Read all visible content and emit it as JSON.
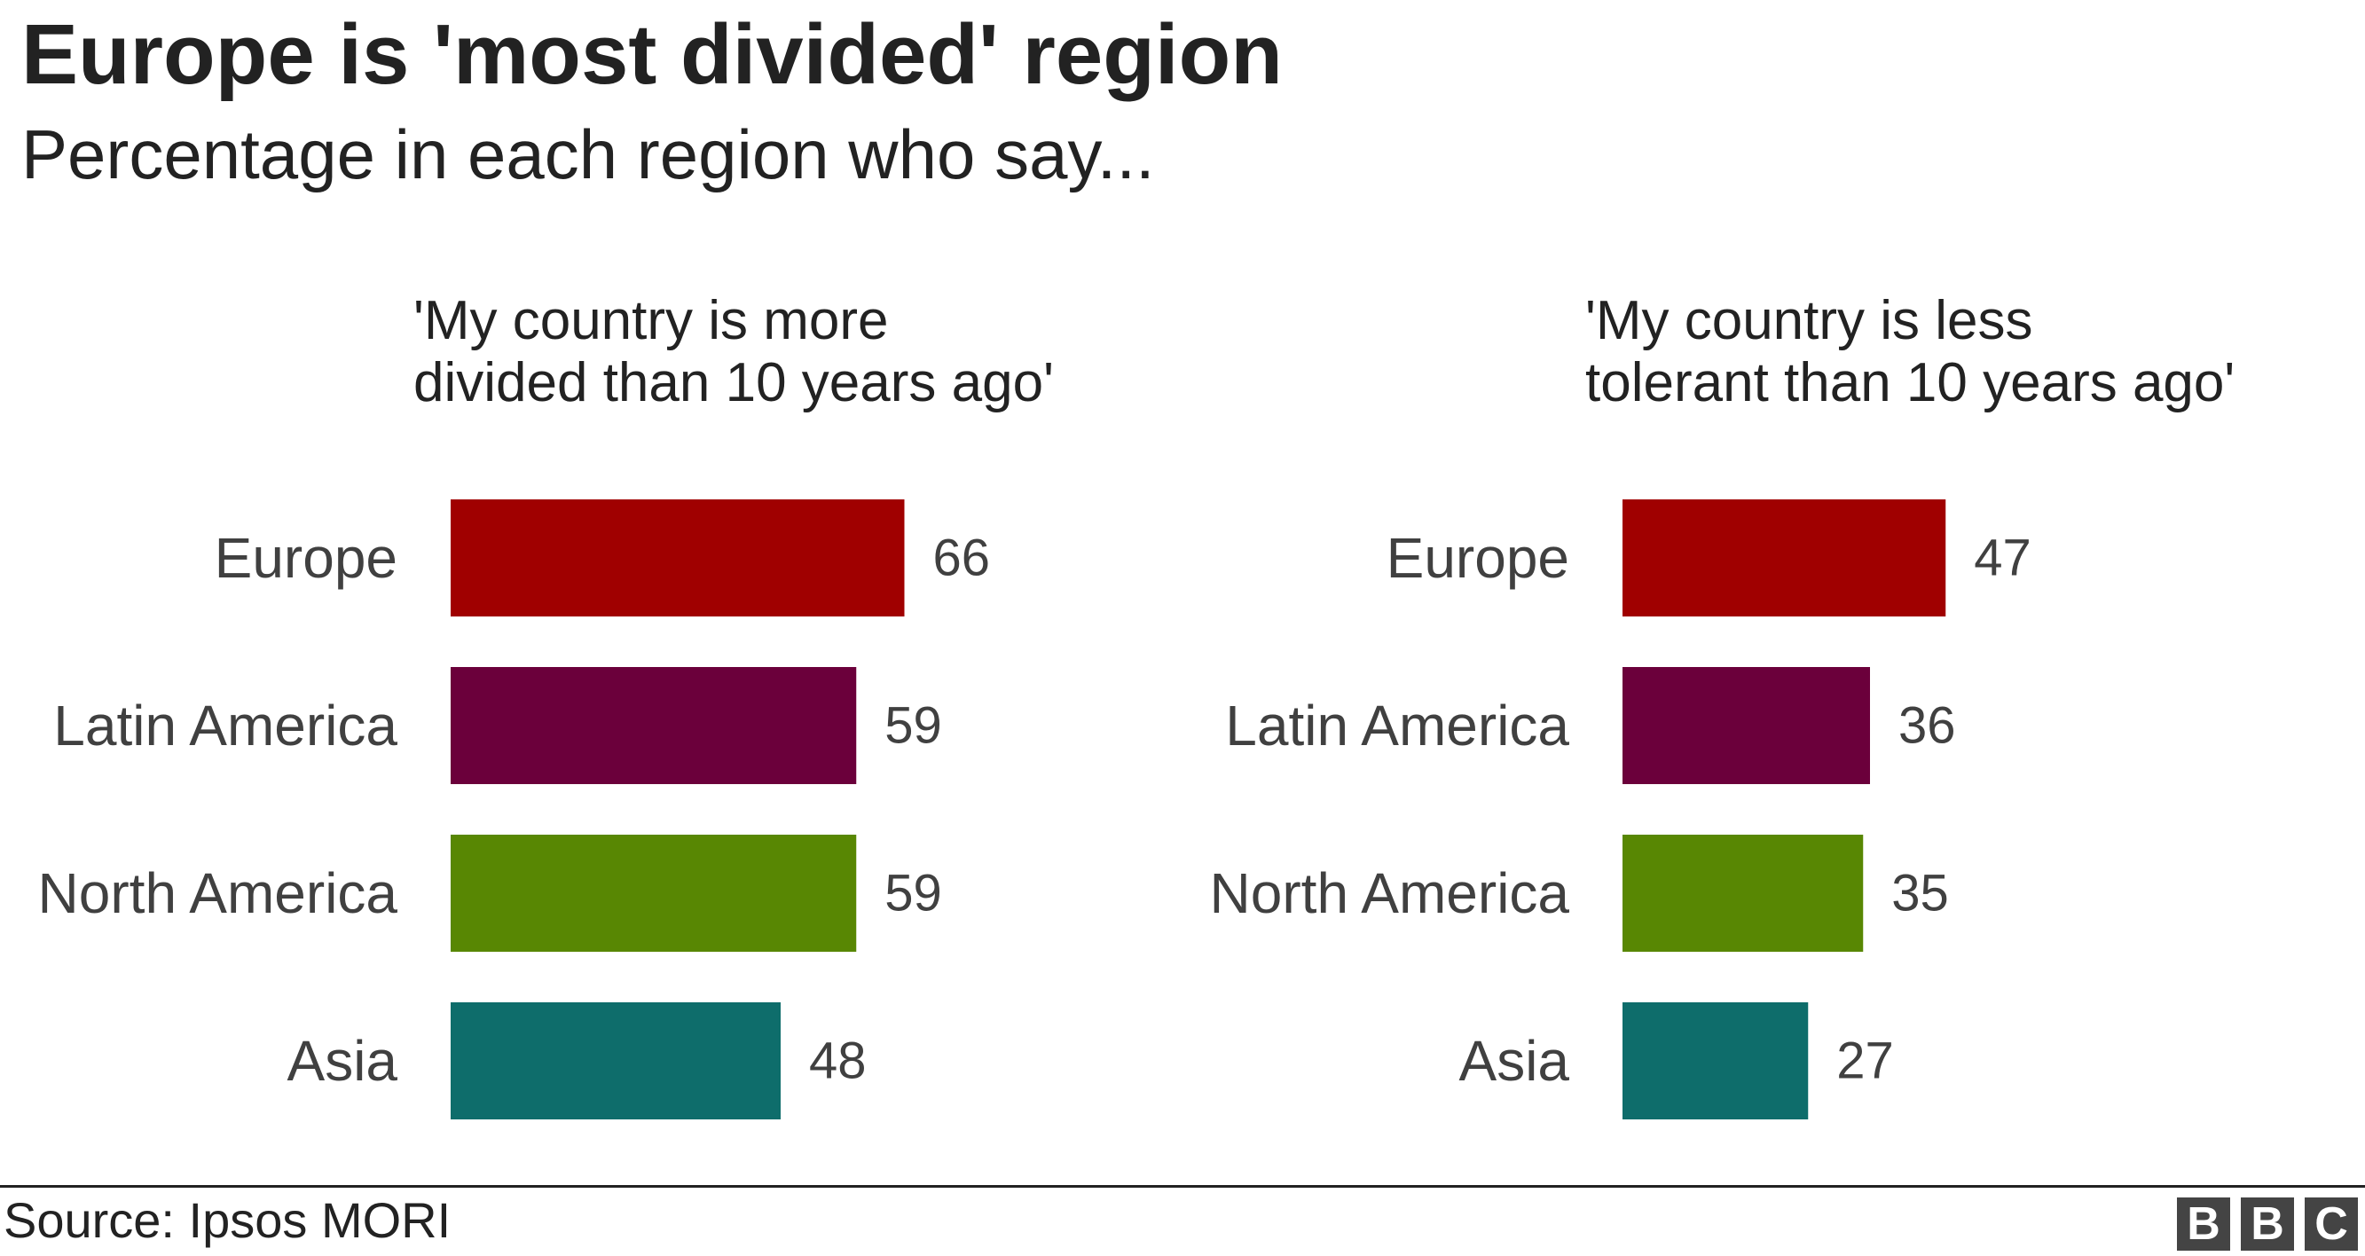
{
  "title": "Europe is 'most divided' region",
  "subtitle": "Percentage in each region who say...",
  "source": "Source: Ipsos MORI",
  "logo": [
    "B",
    "B",
    "C"
  ],
  "chart_data": [
    {
      "type": "bar",
      "orientation": "horizontal",
      "title_lines": [
        "'My country is more",
        "divided than 10 years ago'"
      ],
      "categories": [
        "Europe",
        "Latin America",
        "North America",
        "Asia"
      ],
      "values": [
        66,
        59,
        59,
        48
      ],
      "colors": [
        "#a00000",
        "#6b003b",
        "#588703",
        "#0e6d6b"
      ],
      "data_labels": true,
      "axis_visible": false,
      "grid": false
    },
    {
      "type": "bar",
      "orientation": "horizontal",
      "title_lines": [
        "'My country is less",
        "tolerant than 10 years ago'"
      ],
      "categories": [
        "Europe",
        "Latin America",
        "North America",
        "Asia"
      ],
      "values": [
        47,
        36,
        35,
        27
      ],
      "colors": [
        "#a00000",
        "#6b003b",
        "#588703",
        "#0e6d6b"
      ],
      "data_labels": true,
      "axis_visible": false,
      "grid": false
    }
  ]
}
